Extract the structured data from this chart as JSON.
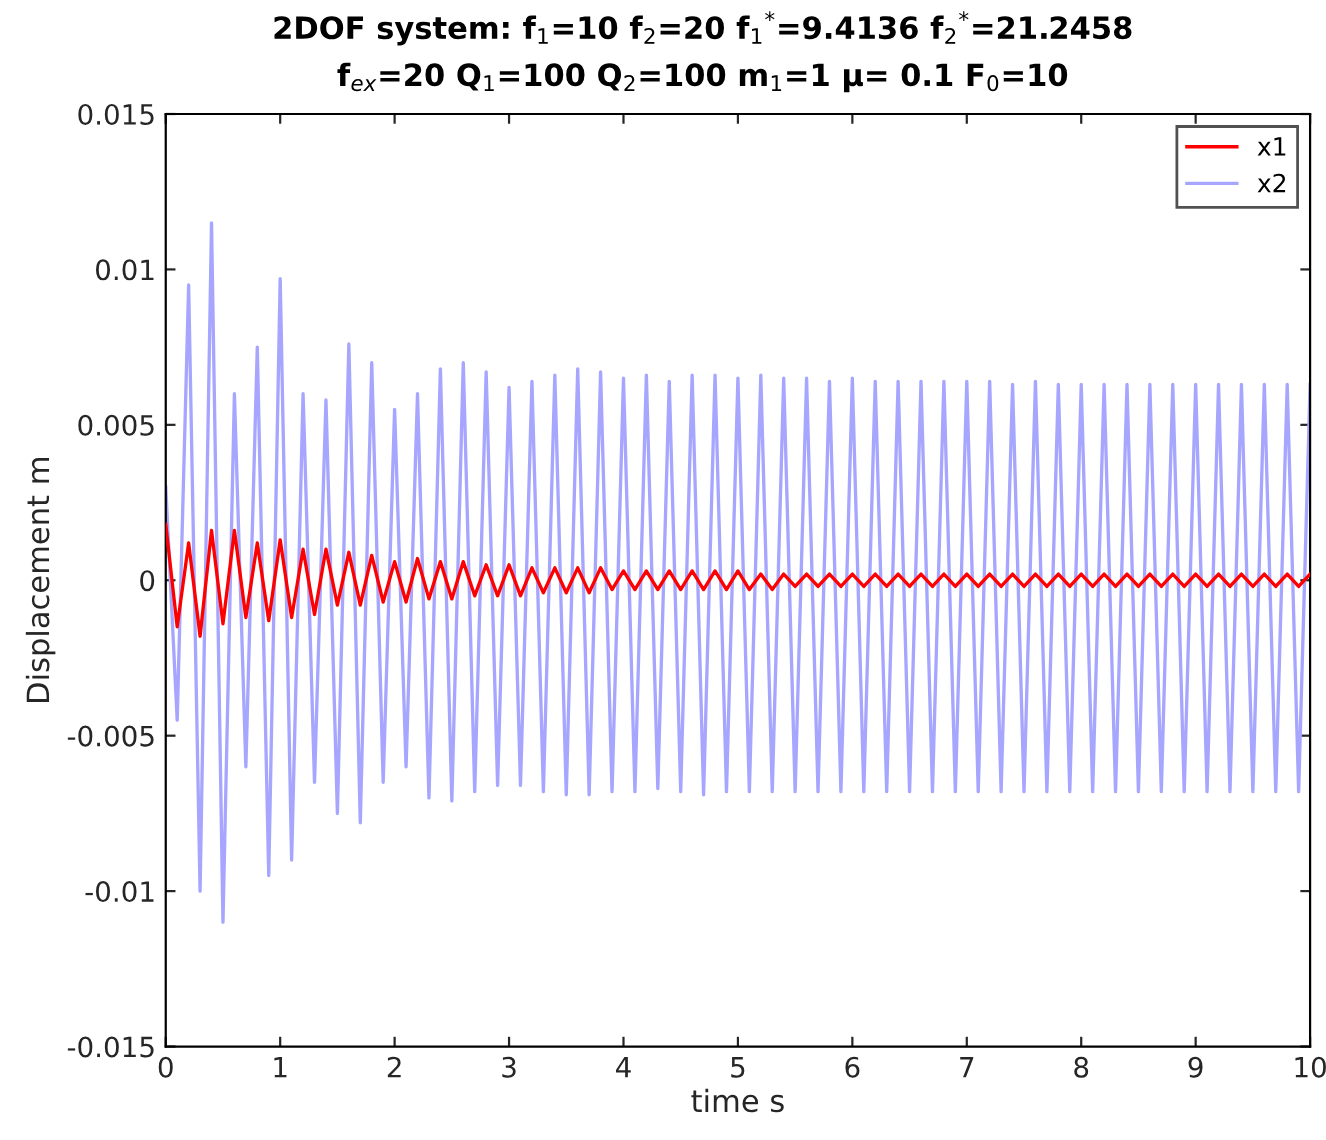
{
  "chart_data": {
    "type": "line",
    "title": "2DOF system: f$_{1}$=10 f$_{2}$=20 f$_{1}$$^{*}$=9.4136 f$_{2}$$^{*}$=21.2458",
    "subtitle": "f$_{ex}$=20 Q$_{1}$=100 Q$_{2}$=100 m$_{1}$=1 μ= 0.1 F$_{0}$=10",
    "xlabel": "time s",
    "ylabel": "Displacement m",
    "x": [
      0,
      0.1,
      0.2,
      0.3,
      0.4,
      0.5,
      0.6,
      0.7,
      0.8,
      0.9,
      1.0,
      1.1,
      1.2,
      1.3,
      1.4,
      1.5,
      1.6,
      1.7,
      1.8,
      1.9,
      2.0,
      2.1,
      2.2,
      2.3,
      2.4,
      2.5,
      2.6,
      2.7,
      2.8,
      2.9,
      3.0,
      3.1,
      3.2,
      3.3,
      3.4,
      3.5,
      3.6,
      3.7,
      3.8,
      3.9,
      4.0,
      4.1,
      4.2,
      4.3,
      4.4,
      4.5,
      4.6,
      4.7,
      4.8,
      4.9,
      5.0,
      5.1,
      5.2,
      5.3,
      5.4,
      5.5,
      5.6,
      5.7,
      5.8,
      5.9,
      6.0,
      6.1,
      6.2,
      6.3,
      6.4,
      6.5,
      6.6,
      6.7,
      6.8,
      6.9,
      7.0,
      7.1,
      7.2,
      7.3,
      7.4,
      7.5,
      7.6,
      7.7,
      7.8,
      7.9,
      8.0,
      8.1,
      8.2,
      8.3,
      8.4,
      8.5,
      8.6,
      8.7,
      8.8,
      8.9,
      9.0,
      9.1,
      9.2,
      9.3,
      9.4,
      9.5,
      9.6,
      9.7,
      9.8,
      9.9,
      10.0
    ],
    "series": [
      {
        "name": "x1",
        "color": "#ff0000",
        "values": [
          0.0018,
          -0.0015,
          0.0012,
          -0.0018,
          0.0016,
          -0.0014,
          0.0016,
          -0.0012,
          0.0012,
          -0.0013,
          0.0013,
          -0.0012,
          0.001,
          -0.0011,
          0.001,
          -0.0008,
          0.0009,
          -0.0008,
          0.0008,
          -0.0007,
          0.0006,
          -0.0007,
          0.0007,
          -0.0006,
          0.0006,
          -0.0006,
          0.0006,
          -0.0005,
          0.0005,
          -0.0005,
          0.0005,
          -0.0005,
          0.0004,
          -0.0004,
          0.0004,
          -0.0004,
          0.0004,
          -0.0004,
          0.0004,
          -0.0003,
          0.0003,
          -0.0003,
          0.0003,
          -0.0003,
          0.0003,
          -0.0003,
          0.0003,
          -0.0003,
          0.0003,
          -0.0003,
          0.0003,
          -0.0003,
          0.0002,
          -0.0003,
          0.0002,
          -0.0002,
          0.0002,
          -0.0002,
          0.0002,
          -0.0002,
          0.0002,
          -0.0002,
          0.0002,
          -0.0002,
          0.0002,
          -0.0002,
          0.0002,
          -0.0002,
          0.0002,
          -0.0002,
          0.0002,
          -0.0002,
          0.0002,
          -0.0002,
          0.0002,
          -0.0002,
          0.0002,
          -0.0002,
          0.0002,
          -0.0002,
          0.0002,
          -0.0002,
          0.0002,
          -0.0002,
          0.0002,
          -0.0002,
          0.0002,
          -0.0002,
          0.0002,
          -0.0002,
          0.0002,
          -0.0002,
          0.0002,
          -0.0002,
          0.0002,
          -0.0002,
          0.0002,
          -0.0002,
          0.0002,
          -0.0002,
          0.0002
        ]
      },
      {
        "name": "x2",
        "color": "#a6a6ff",
        "values": [
          0.003,
          -0.0045,
          0.0095,
          -0.01,
          0.0115,
          -0.011,
          0.006,
          -0.006,
          0.0075,
          -0.0095,
          0.0097,
          -0.009,
          0.006,
          -0.0065,
          0.0058,
          -0.0075,
          0.0076,
          -0.0078,
          0.007,
          -0.0065,
          0.0055,
          -0.006,
          0.006,
          -0.007,
          0.0068,
          -0.0071,
          0.007,
          -0.0068,
          0.0067,
          -0.0066,
          0.0062,
          -0.0066,
          0.0064,
          -0.0068,
          0.0066,
          -0.0069,
          0.0068,
          -0.0069,
          0.0067,
          -0.0068,
          0.0065,
          -0.0068,
          0.0066,
          -0.0067,
          0.0064,
          -0.0068,
          0.0066,
          -0.0069,
          0.0066,
          -0.0068,
          0.0065,
          -0.0068,
          0.0066,
          -0.0068,
          0.0065,
          -0.0068,
          0.0065,
          -0.0068,
          0.0064,
          -0.0068,
          0.0065,
          -0.0068,
          0.0064,
          -0.0068,
          0.0064,
          -0.0068,
          0.0064,
          -0.0068,
          0.0064,
          -0.0068,
          0.0064,
          -0.0068,
          0.0064,
          -0.0068,
          0.0063,
          -0.0068,
          0.0064,
          -0.0068,
          0.0063,
          -0.0068,
          0.0063,
          -0.0068,
          0.0063,
          -0.0068,
          0.0063,
          -0.0068,
          0.0063,
          -0.0068,
          0.0063,
          -0.0068,
          0.0063,
          -0.0068,
          0.0063,
          -0.0068,
          0.0063,
          -0.0068,
          0.0063,
          -0.0068,
          0.0063,
          -0.0068,
          0.0063
        ]
      }
    ],
    "xlim": [
      0,
      10
    ],
    "xticks": [
      0,
      1,
      2,
      3,
      4,
      5,
      6,
      7,
      8,
      9,
      10
    ],
    "ylim": [
      -0.015,
      0.015
    ],
    "yticks": [
      -0.015,
      -0.01,
      -0.005,
      0,
      0.005,
      0.01,
      0.015
    ],
    "legend": "top right",
    "marker": "none",
    "line_style": "solid"
  }
}
